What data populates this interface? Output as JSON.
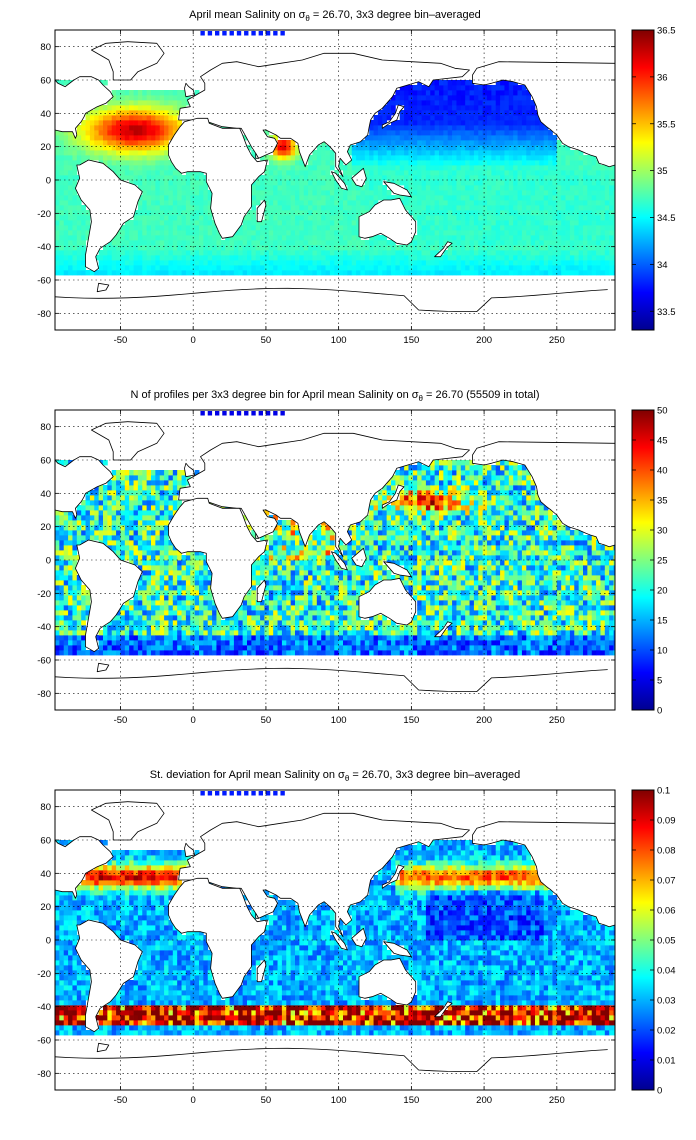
{
  "panels": [
    {
      "id": "salinity",
      "title_pre": "April mean Salinity on σ",
      "title_sub": "θ",
      "title_post": " = 26.70, 3x3 degree bin–averaged",
      "colorbar": {
        "min": 33.3,
        "max": 36.5,
        "ticks": [
          "36.5",
          "36",
          "35.5",
          "35",
          "34.5",
          "34",
          "33.5"
        ],
        "tick_values": [
          36.5,
          36,
          35.5,
          35,
          34.5,
          34,
          33.5
        ]
      }
    },
    {
      "id": "count",
      "title_pre": "N of profiles per 3x3 degree bin for April mean Salinity on σ",
      "title_sub": "θ",
      "title_post": " = 26.70 (55509 in total)",
      "colorbar": {
        "min": 0,
        "max": 50,
        "ticks": [
          "50",
          "45",
          "40",
          "35",
          "30",
          "25",
          "20",
          "15",
          "10",
          "5",
          "0"
        ],
        "tick_values": [
          50,
          45,
          40,
          35,
          30,
          25,
          20,
          15,
          10,
          5,
          0
        ]
      }
    },
    {
      "id": "stdev",
      "title_pre": "St. deviation for April mean Salinity on σ",
      "title_sub": "θ",
      "title_post": " = 26.70, 3x3 degree bin–averaged",
      "colorbar": {
        "min": 0,
        "max": 0.1,
        "ticks": [
          "0.1",
          "0.09",
          "0.08",
          "0.07",
          "0.06",
          "0.05",
          "0.04",
          "0.03",
          "0.02",
          "0.01",
          "0"
        ],
        "tick_values": [
          0.1,
          0.09,
          0.08,
          0.07,
          0.06,
          0.05,
          0.04,
          0.03,
          0.02,
          0.01,
          0
        ]
      }
    }
  ],
  "axes": {
    "xlim": [
      -95,
      290
    ],
    "ylim": [
      -90,
      90
    ],
    "x_ticks": [
      "-50",
      "0",
      "50",
      "100",
      "150",
      "200",
      "250"
    ],
    "x_tick_values": [
      -50,
      0,
      50,
      100,
      150,
      200,
      250
    ],
    "y_ticks": [
      "80",
      "60",
      "40",
      "20",
      "0",
      "-20",
      "-40",
      "-60",
      "-80"
    ],
    "y_tick_values": [
      80,
      60,
      40,
      20,
      0,
      -20,
      -40,
      -60,
      -80
    ],
    "grid": true
  },
  "colormap": "jet"
}
